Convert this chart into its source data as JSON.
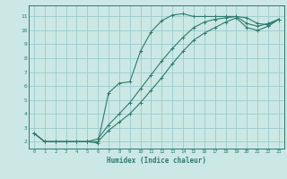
{
  "xlabel": "Humidex (Indice chaleur)",
  "background_color": "#cce8e4",
  "grid_color": "#99cccc",
  "line_color": "#2d7a6e",
  "xlim": [
    -0.5,
    23.5
  ],
  "ylim": [
    1.5,
    11.8
  ],
  "xticks": [
    0,
    1,
    2,
    3,
    4,
    5,
    6,
    7,
    8,
    9,
    10,
    11,
    12,
    13,
    14,
    15,
    16,
    17,
    18,
    19,
    20,
    21,
    22,
    23
  ],
  "yticks": [
    2,
    3,
    4,
    5,
    6,
    7,
    8,
    9,
    10,
    11
  ],
  "curve1_x": [
    0,
    1,
    2,
    3,
    4,
    5,
    6,
    7,
    8,
    9,
    10,
    11,
    12,
    13,
    14,
    15,
    16,
    17,
    18,
    19,
    20,
    21,
    22,
    23
  ],
  "curve1_y": [
    2.6,
    2.0,
    2.0,
    2.0,
    2.0,
    2.0,
    1.9,
    5.5,
    6.2,
    6.3,
    8.5,
    9.9,
    10.7,
    11.1,
    11.2,
    11.0,
    11.0,
    11.0,
    11.0,
    11.0,
    10.9,
    10.5,
    10.4,
    10.8
  ],
  "curve2_x": [
    0,
    1,
    2,
    3,
    4,
    5,
    6,
    7,
    8,
    9,
    10,
    11,
    12,
    13,
    14,
    15,
    16,
    17,
    18,
    19,
    20,
    21,
    22,
    23
  ],
  "curve2_y": [
    2.6,
    2.0,
    2.0,
    2.0,
    2.0,
    2.0,
    2.2,
    3.2,
    4.0,
    4.8,
    5.8,
    6.8,
    7.8,
    8.7,
    9.5,
    10.2,
    10.6,
    10.8,
    10.9,
    11.0,
    10.5,
    10.3,
    10.5,
    10.8
  ],
  "curve3_x": [
    0,
    1,
    2,
    3,
    4,
    5,
    6,
    7,
    8,
    9,
    10,
    11,
    12,
    13,
    14,
    15,
    16,
    17,
    18,
    19,
    20,
    21,
    22,
    23
  ],
  "curve3_y": [
    2.6,
    2.0,
    2.0,
    2.0,
    2.0,
    2.0,
    2.0,
    2.8,
    3.4,
    4.0,
    4.8,
    5.7,
    6.6,
    7.6,
    8.5,
    9.3,
    9.8,
    10.2,
    10.6,
    10.9,
    10.2,
    10.0,
    10.3,
    10.8
  ]
}
